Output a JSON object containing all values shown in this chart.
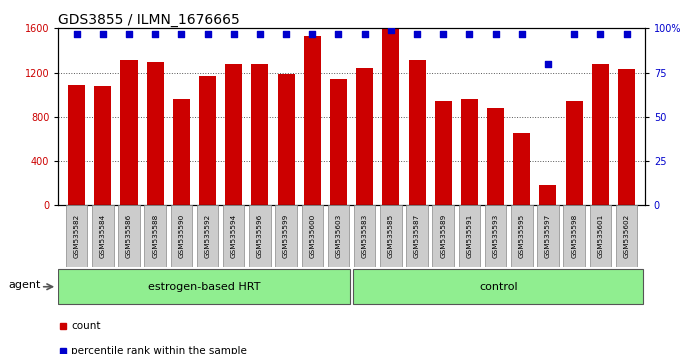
{
  "title": "GDS3855 / ILMN_1676665",
  "samples": [
    "GSM535582",
    "GSM535584",
    "GSM535586",
    "GSM535588",
    "GSM535590",
    "GSM535592",
    "GSM535594",
    "GSM535596",
    "GSM535599",
    "GSM535600",
    "GSM535603",
    "GSM535583",
    "GSM535585",
    "GSM535587",
    "GSM535589",
    "GSM535591",
    "GSM535593",
    "GSM535595",
    "GSM535597",
    "GSM535598",
    "GSM535601",
    "GSM535602"
  ],
  "counts": [
    1090,
    1075,
    1310,
    1295,
    960,
    1165,
    1280,
    1280,
    1190,
    1530,
    1145,
    1245,
    1590,
    1315,
    940,
    960,
    880,
    650,
    180,
    940,
    1275,
    1235
  ],
  "percentile_ranks": [
    97,
    97,
    97,
    97,
    97,
    97,
    97,
    97,
    97,
    97,
    97,
    97,
    99,
    97,
    97,
    97,
    97,
    97,
    80,
    97,
    97,
    97
  ],
  "group1_label": "estrogen-based HRT",
  "group1_count": 11,
  "group2_label": "control",
  "group2_count": 11,
  "agent_label": "agent",
  "bar_color": "#CC0000",
  "dot_color": "#0000CC",
  "ylim_left": [
    0,
    1600
  ],
  "ylim_right": [
    0,
    100
  ],
  "yticks_left": [
    0,
    400,
    800,
    1200,
    1600
  ],
  "yticks_right": [
    0,
    25,
    50,
    75,
    100
  ],
  "grid_color": "#000000",
  "bg_color": "#FFFFFF",
  "plot_bg": "#FFFFFF",
  "group1_color": "#90EE90",
  "group2_color": "#90EE90",
  "legend_count_label": "count",
  "legend_pct_label": "percentile rank within the sample",
  "title_fontsize": 10,
  "tick_fontsize": 7,
  "label_fontsize": 8
}
